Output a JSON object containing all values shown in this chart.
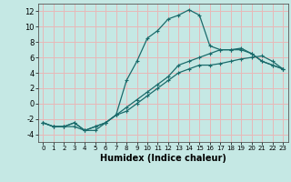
{
  "xlabel": "Humidex (Indice chaleur)",
  "background_color": "#c5e8e4",
  "grid_color": "#e8b8b8",
  "line_color": "#1a6b6b",
  "xlim": [
    -0.5,
    23.5
  ],
  "ylim": [
    -5,
    13
  ],
  "xticks": [
    0,
    1,
    2,
    3,
    4,
    5,
    6,
    7,
    8,
    9,
    10,
    11,
    12,
    13,
    14,
    15,
    16,
    17,
    18,
    19,
    20,
    21,
    22,
    23
  ],
  "yticks": [
    -4,
    -2,
    0,
    2,
    4,
    6,
    8,
    10,
    12
  ],
  "line1_x": [
    0,
    1,
    2,
    3,
    4,
    5,
    6,
    7,
    8,
    9,
    10,
    11,
    12,
    13,
    14,
    15,
    16,
    17,
    18,
    19,
    20,
    21,
    22,
    23
  ],
  "line1_y": [
    -2.5,
    -3,
    -3,
    -2.5,
    -3.5,
    -3.0,
    -2.5,
    -1.5,
    3,
    5.5,
    8.5,
    9.5,
    11.0,
    11.5,
    12.2,
    11.5,
    7.5,
    7.0,
    7.0,
    7.0,
    6.5,
    5.5,
    5.0,
    4.5
  ],
  "line2_x": [
    0,
    1,
    2,
    3,
    4,
    5,
    6,
    7,
    8,
    9,
    10,
    11,
    12,
    13,
    14,
    15,
    16,
    17,
    18,
    19,
    20,
    21,
    22,
    23
  ],
  "line2_y": [
    -2.5,
    -3,
    -3,
    -2.5,
    -3.5,
    -3.0,
    -2.5,
    -1.5,
    -0.5,
    0.5,
    1.5,
    2.5,
    3.5,
    5.0,
    5.5,
    6.0,
    6.5,
    7.0,
    7.0,
    7.2,
    6.5,
    5.5,
    5.0,
    4.5
  ],
  "line3_x": [
    0,
    1,
    2,
    3,
    4,
    5,
    6,
    7,
    8,
    9,
    10,
    11,
    12,
    13,
    14,
    15,
    16,
    17,
    18,
    19,
    20,
    21,
    22,
    23
  ],
  "line3_y": [
    -2.5,
    -3,
    -3,
    -3,
    -3.5,
    -3.5,
    -2.5,
    -1.5,
    -1.0,
    0.0,
    1.0,
    2.0,
    3.0,
    4.0,
    4.5,
    5.0,
    5.0,
    5.2,
    5.5,
    5.8,
    6.0,
    6.2,
    5.5,
    4.5
  ]
}
